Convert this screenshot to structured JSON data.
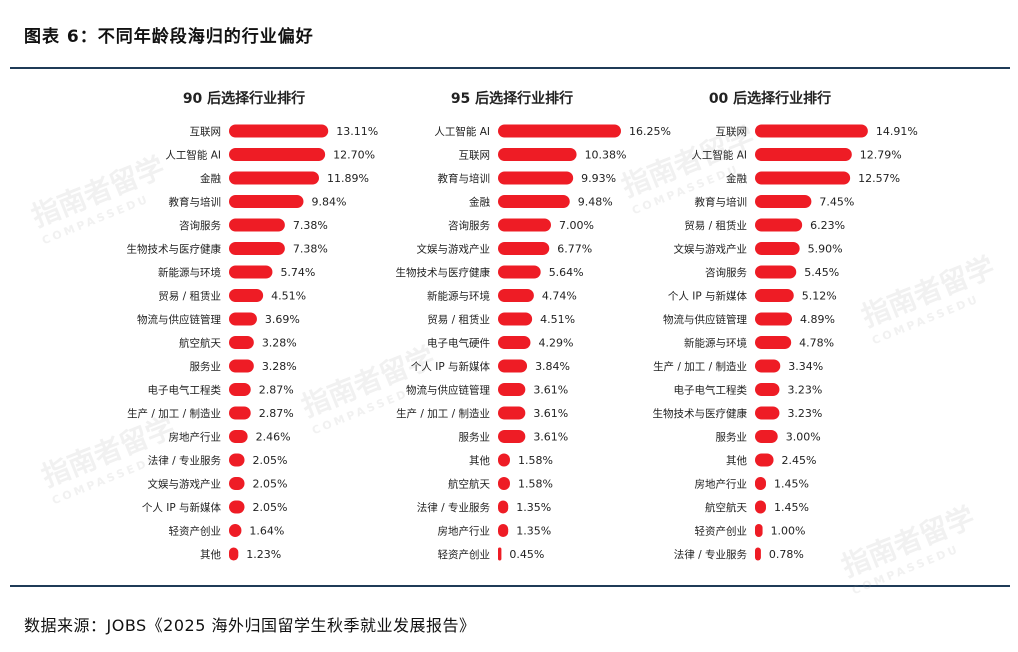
{
  "header": {
    "title": "图表 6：不同年龄段海归的行业偏好"
  },
  "footer": {
    "source": "数据来源：JOBS《2025 海外归国留学生秋季就业发展报告》"
  },
  "watermark": {
    "text": "指南者留学",
    "subtext": "COMPASSEDU"
  },
  "colors": {
    "bar": "#ee1c25",
    "rule": "#1f3b57"
  },
  "chart_data": [
    {
      "type": "bar",
      "orientation": "horizontal",
      "title": "90 后选择行业排行",
      "categories": [
        "互联网",
        "人工智能 AI",
        "金融",
        "教育与培训",
        "咨询服务",
        "生物技术与医疗健康",
        "新能源与环境",
        "贸易 / 租赁业",
        "物流与供应链管理",
        "航空航天",
        "服务业",
        "电子电气工程类",
        "生产 / 加工 / 制造业",
        "房地产行业",
        "法律 / 专业服务",
        "文娱与游戏产业",
        "个人 IP 与新媒体",
        "轻资产创业",
        "其他"
      ],
      "values": [
        13.11,
        12.7,
        11.89,
        9.84,
        7.38,
        7.38,
        5.74,
        4.51,
        3.69,
        3.28,
        3.28,
        2.87,
        2.87,
        2.46,
        2.05,
        2.05,
        2.05,
        1.64,
        1.23
      ],
      "labels": [
        "13.11%",
        "12.70%",
        "11.89%",
        "9.84%",
        "7.38%",
        "7.38%",
        "5.74%",
        "4.51%",
        "3.69%",
        "3.28%",
        "3.28%",
        "2.87%",
        "2.87%",
        "2.46%",
        "2.05%",
        "2.05%",
        "2.05%",
        "1.64%",
        "1.23%"
      ],
      "unit": "%"
    },
    {
      "type": "bar",
      "orientation": "horizontal",
      "title": "95 后选择行业排行",
      "categories": [
        "人工智能 AI",
        "互联网",
        "教育与培训",
        "金融",
        "咨询服务",
        "文娱与游戏产业",
        "生物技术与医疗健康",
        "新能源与环境",
        "贸易 / 租赁业",
        "电子电气硬件",
        "个人 IP 与新媒体",
        "物流与供应链管理",
        "生产 / 加工 / 制造业",
        "服务业",
        "其他",
        "航空航天",
        "法律 / 专业服务",
        "房地产行业",
        "轻资产创业"
      ],
      "values": [
        16.25,
        10.38,
        9.93,
        9.48,
        7.0,
        6.77,
        5.64,
        4.74,
        4.51,
        4.29,
        3.84,
        3.61,
        3.61,
        3.61,
        1.58,
        1.58,
        1.35,
        1.35,
        0.45
      ],
      "labels": [
        "16.25%",
        "10.38%",
        "9.93%",
        "9.48%",
        "7.00%",
        "6.77%",
        "5.64%",
        "4.74%",
        "4.51%",
        "4.29%",
        "3.84%",
        "3.61%",
        "3.61%",
        "3.61%",
        "1.58%",
        "1.58%",
        "1.35%",
        "1.35%",
        "0.45%"
      ],
      "unit": "%"
    },
    {
      "type": "bar",
      "orientation": "horizontal",
      "title": "00 后选择行业排行",
      "categories": [
        "互联网",
        "人工智能 AI",
        "金融",
        "教育与培训",
        "贸易 / 租赁业",
        "文娱与游戏产业",
        "咨询服务",
        "个人 IP 与新媒体",
        "物流与供应链管理",
        "新能源与环境",
        "生产 / 加工 / 制造业",
        "电子电气工程类",
        "生物技术与医疗健康",
        "服务业",
        "其他",
        "房地产行业",
        "航空航天",
        "轻资产创业",
        "法律 / 专业服务"
      ],
      "values": [
        14.91,
        12.79,
        12.57,
        7.45,
        6.23,
        5.9,
        5.45,
        5.12,
        4.89,
        4.78,
        3.34,
        3.23,
        3.23,
        3.0,
        2.45,
        1.45,
        1.45,
        1.0,
        0.78
      ],
      "labels": [
        "14.91%",
        "12.79%",
        "12.57%",
        "7.45%",
        "6.23%",
        "5.90%",
        "5.45%",
        "5.12%",
        "4.89%",
        "4.78%",
        "3.34%",
        "3.23%",
        "3.23%",
        "3.00%",
        "2.45%",
        "1.45%",
        "1.45%",
        "1.00%",
        "0.78%"
      ],
      "unit": "%"
    }
  ]
}
